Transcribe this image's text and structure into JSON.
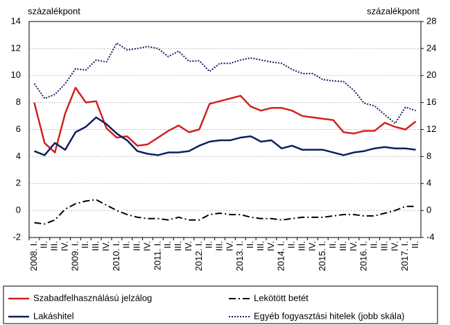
{
  "chart_data": {
    "type": "line",
    "y_label": "százalékpont",
    "y2_label": "százalékpont",
    "categories": [
      "2008. I.",
      "II.",
      "III.",
      "IV.",
      "2009. I.",
      "II.",
      "III.",
      "IV.",
      "2010. I.",
      "II.",
      "III.",
      "IV.",
      "2011. I.",
      "II.",
      "III.",
      "IV.",
      "2012. I.",
      "II.",
      "III.",
      "IV.",
      "2013. I.",
      "II.",
      "III.",
      "IV.",
      "2014. I.",
      "II.",
      "III.",
      "IV.",
      "2015. I.",
      "II.",
      "III.",
      "IV.",
      "2016. I.",
      "II.",
      "III.",
      "IV.",
      "2017. I.",
      "II."
    ],
    "ylim": [
      -2,
      14
    ],
    "yticks": [
      -2,
      0,
      2,
      4,
      6,
      8,
      10,
      12,
      14
    ],
    "y2lim": [
      -4,
      28
    ],
    "y2ticks": [
      -4,
      0,
      4,
      8,
      12,
      16,
      20,
      24,
      28
    ],
    "grid": true,
    "series": [
      {
        "name": "Szabadfelhasználású jelzálog",
        "color": "#d42020",
        "style": "solid",
        "values": [
          8.0,
          5.0,
          4.3,
          7.2,
          9.1,
          8.0,
          8.1,
          6.1,
          5.4,
          5.5,
          4.8,
          4.9,
          5.4,
          5.9,
          6.3,
          5.8,
          6.0,
          7.9,
          8.1,
          8.3,
          8.5,
          7.7,
          7.4,
          7.6,
          7.6,
          7.4,
          7.0,
          6.9,
          6.8,
          6.7,
          5.8,
          5.7,
          5.9,
          5.9,
          6.5,
          6.2,
          6.0,
          6.6
        ]
      },
      {
        "name": "Lekötött betét",
        "color": "#000000",
        "style": "dashdot",
        "values": [
          -0.9,
          -1.0,
          -0.7,
          0.1,
          0.5,
          0.7,
          0.8,
          0.4,
          0.0,
          -0.3,
          -0.5,
          -0.6,
          -0.6,
          -0.7,
          -0.5,
          -0.7,
          -0.7,
          -0.3,
          -0.2,
          -0.3,
          -0.3,
          -0.5,
          -0.6,
          -0.6,
          -0.7,
          -0.6,
          -0.5,
          -0.5,
          -0.5,
          -0.4,
          -0.3,
          -0.3,
          -0.4,
          -0.4,
          -0.2,
          0.0,
          0.3,
          0.3
        ]
      },
      {
        "name": "Lakáshitel",
        "color": "#0d1f5c",
        "style": "solid",
        "values": [
          4.4,
          4.1,
          5.0,
          4.5,
          5.8,
          6.2,
          6.9,
          6.4,
          5.7,
          5.2,
          4.4,
          4.2,
          4.1,
          4.3,
          4.3,
          4.4,
          4.8,
          5.1,
          5.2,
          5.2,
          5.4,
          5.5,
          5.1,
          5.2,
          4.6,
          4.8,
          4.5,
          4.5,
          4.5,
          4.3,
          4.1,
          4.3,
          4.4,
          4.6,
          4.7,
          4.6,
          4.6,
          4.5
        ]
      },
      {
        "name": "Egyéb fogyasztási hitelek (jobb skála)",
        "color": "#0d1f5c",
        "style": "dotted",
        "axis": "y2",
        "values": [
          18.8,
          16.6,
          17.2,
          18.8,
          21.0,
          20.8,
          22.3,
          22.0,
          24.8,
          23.8,
          24.0,
          24.3,
          24.0,
          22.8,
          23.6,
          22.1,
          22.2,
          20.6,
          21.8,
          21.8,
          22.3,
          22.6,
          22.3,
          22.0,
          21.8,
          20.9,
          20.3,
          20.3,
          19.4,
          19.2,
          19.1,
          17.8,
          15.9,
          15.5,
          14.2,
          12.9,
          15.3,
          14.8
        ]
      }
    ]
  }
}
